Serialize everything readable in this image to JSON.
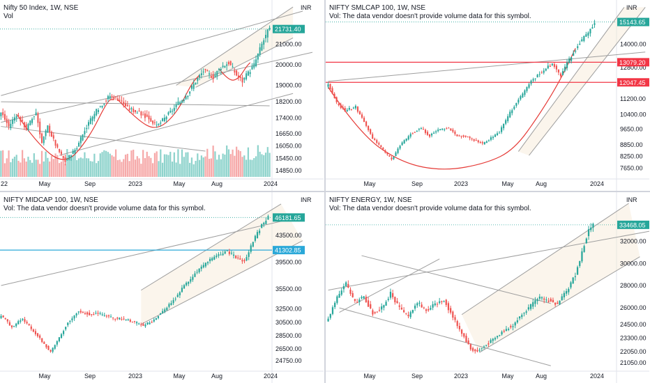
{
  "chart_data": [
    {
      "type": "candlestick",
      "title": "Nifty 50 Index, 1W, NSE",
      "volume_label": "Vol",
      "currency": "INR",
      "x_ticks": [
        "22",
        "May",
        "Sep",
        "2023",
        "May",
        "Aug",
        "2024"
      ],
      "y_ticks": [
        21000.0,
        20000.0,
        19000.0,
        18200.0,
        17400.0,
        16650.0,
        16050.0,
        15450.0,
        14850.0
      ],
      "ylim": [
        14550,
        22600
      ],
      "price_label": {
        "value": 21731.4,
        "text": "21731.40",
        "color": "#26a69a"
      },
      "hlines": [
        {
          "value": 21731.4,
          "color": "#26a69a"
        }
      ],
      "has_volume": true,
      "anchors": [
        [
          0,
          17700
        ],
        [
          4,
          17000
        ],
        [
          8,
          17600
        ],
        [
          13,
          16900
        ],
        [
          18,
          17700
        ],
        [
          21,
          16200
        ],
        [
          24,
          17000
        ],
        [
          29,
          15900
        ],
        [
          33,
          15300
        ],
        [
          39,
          16000
        ],
        [
          44,
          17000
        ],
        [
          50,
          17900
        ],
        [
          56,
          18500
        ],
        [
          61,
          18300
        ],
        [
          65,
          17900
        ],
        [
          70,
          17700
        ],
        [
          76,
          17400
        ],
        [
          80,
          17000
        ],
        [
          85,
          17500
        ],
        [
          91,
          18100
        ],
        [
          96,
          18600
        ],
        [
          100,
          19200
        ],
        [
          104,
          19700
        ],
        [
          109,
          19400
        ],
        [
          113,
          19900
        ],
        [
          117,
          20100
        ],
        [
          121,
          19500
        ],
        [
          124,
          19200
        ],
        [
          127,
          19600
        ],
        [
          130,
          20000
        ],
        [
          134,
          21000
        ],
        [
          137,
          21600
        ],
        [
          138,
          21731
        ]
      ]
    },
    {
      "type": "candlestick",
      "title": "NIFTY SMLCAP 100, 1W, NSE",
      "volume_label": "Vol: The data vendor doesn't provide volume data for this symbol.",
      "currency": "INR",
      "x_ticks": [
        "May",
        "Sep",
        "2023",
        "May",
        "Aug",
        "2024"
      ],
      "y_ticks": [
        14000.0,
        12800.0,
        11200.0,
        10400.0,
        9650.0,
        8850.0,
        8250.0,
        7650.0
      ],
      "ylim": [
        7200,
        15700
      ],
      "price_label": {
        "value": 15143.65,
        "text": "15143.65",
        "color": "#26a69a"
      },
      "hlines": [
        {
          "value": 15143.65,
          "color": "#26a69a"
        },
        {
          "value": 13079.2,
          "text": "13079.20",
          "color": "#f23645"
        },
        {
          "value": 12047.45,
          "text": "12047.45",
          "color": "#f23645"
        }
      ],
      "has_volume": false,
      "anchors": [
        [
          0,
          12000
        ],
        [
          4,
          11000
        ],
        [
          8,
          10600
        ],
        [
          13,
          10800
        ],
        [
          17,
          10000
        ],
        [
          21,
          9200
        ],
        [
          25,
          8700
        ],
        [
          30,
          8100
        ],
        [
          34,
          8800
        ],
        [
          39,
          9400
        ],
        [
          44,
          9700
        ],
        [
          48,
          9300
        ],
        [
          52,
          9600
        ],
        [
          57,
          9700
        ],
        [
          61,
          9300
        ],
        [
          65,
          9300
        ],
        [
          69,
          9100
        ],
        [
          73,
          8900
        ],
        [
          77,
          9200
        ],
        [
          81,
          9500
        ],
        [
          86,
          10500
        ],
        [
          91,
          11300
        ],
        [
          96,
          12100
        ],
        [
          101,
          12600
        ],
        [
          106,
          13000
        ],
        [
          110,
          12400
        ],
        [
          114,
          13200
        ],
        [
          119,
          14100
        ],
        [
          123,
          14600
        ],
        [
          126,
          15143
        ]
      ]
    },
    {
      "type": "candlestick",
      "title": "NIFTY MIDCAP 100, 1W, NSE",
      "volume_label": "Vol: The data vendor doesn't provide volume data for this symbol.",
      "currency": "INR",
      "x_ticks": [
        "May",
        "Sep",
        "2023",
        "May",
        "Aug",
        "2024"
      ],
      "y_ticks": [
        43500.0,
        39500.0,
        35500.0,
        32500.0,
        30500.0,
        28500.0,
        26500.0,
        24750.0
      ],
      "ylim": [
        23500,
        48300
      ],
      "price_label": {
        "value": 46181.65,
        "text": "46181.65",
        "color": "#26a69a"
      },
      "hlines": [
        {
          "value": 46181.65,
          "color": "#26a69a"
        },
        {
          "value": 41302.85,
          "text": "41302.85",
          "color": "#2aa8d8"
        }
      ],
      "has_volume": false,
      "anchors": [
        [
          0,
          31500
        ],
        [
          5,
          29800
        ],
        [
          10,
          31000
        ],
        [
          15,
          29200
        ],
        [
          20,
          27300
        ],
        [
          23,
          26000
        ],
        [
          27,
          28200
        ],
        [
          31,
          30500
        ],
        [
          36,
          32200
        ],
        [
          41,
          31700
        ],
        [
          46,
          31800
        ],
        [
          51,
          31200
        ],
        [
          56,
          31000
        ],
        [
          61,
          30600
        ],
        [
          66,
          30000
        ],
        [
          70,
          30700
        ],
        [
          76,
          32300
        ],
        [
          81,
          34200
        ],
        [
          86,
          36300
        ],
        [
          91,
          38100
        ],
        [
          96,
          39600
        ],
        [
          100,
          40300
        ],
        [
          104,
          41200
        ],
        [
          109,
          40300
        ],
        [
          113,
          39600
        ],
        [
          117,
          42600
        ],
        [
          121,
          45000
        ],
        [
          124,
          46181
        ]
      ]
    },
    {
      "type": "candlestick",
      "title": "NIFTY ENERGY, 1W, NSE",
      "volume_label": "Vol: The data vendor doesn't provide volume data for this symbol.",
      "currency": "INR",
      "x_ticks": [
        "May",
        "Sep",
        "2023",
        "May",
        "Aug",
        "2024"
      ],
      "y_ticks": [
        32000.0,
        30000.0,
        28000.0,
        26000.0,
        24500.0,
        23300.0,
        22050.0,
        21050.0
      ],
      "ylim": [
        20500,
        35400
      ],
      "price_label": {
        "value": 33468.05,
        "text": "33468.05",
        "color": "#26a69a"
      },
      "hlines": [
        {
          "value": 33468.05,
          "color": "#26a69a"
        }
      ],
      "has_volume": false,
      "anchors": [
        [
          0,
          25000
        ],
        [
          4,
          27000
        ],
        [
          8,
          28200
        ],
        [
          12,
          26500
        ],
        [
          16,
          27000
        ],
        [
          20,
          25500
        ],
        [
          24,
          26000
        ],
        [
          28,
          27300
        ],
        [
          32,
          26000
        ],
        [
          36,
          25200
        ],
        [
          40,
          26500
        ],
        [
          44,
          25800
        ],
        [
          48,
          26300
        ],
        [
          52,
          26700
        ],
        [
          56,
          25200
        ],
        [
          60,
          23800
        ],
        [
          64,
          22300
        ],
        [
          67,
          22100
        ],
        [
          71,
          22700
        ],
        [
          75,
          23300
        ],
        [
          79,
          24000
        ],
        [
          83,
          24500
        ],
        [
          87,
          25400
        ],
        [
          91,
          26200
        ],
        [
          95,
          26900
        ],
        [
          99,
          26700
        ],
        [
          103,
          26300
        ],
        [
          107,
          27500
        ],
        [
          111,
          29000
        ],
        [
          114,
          31000
        ],
        [
          117,
          33000
        ],
        [
          119,
          33468
        ]
      ]
    }
  ]
}
